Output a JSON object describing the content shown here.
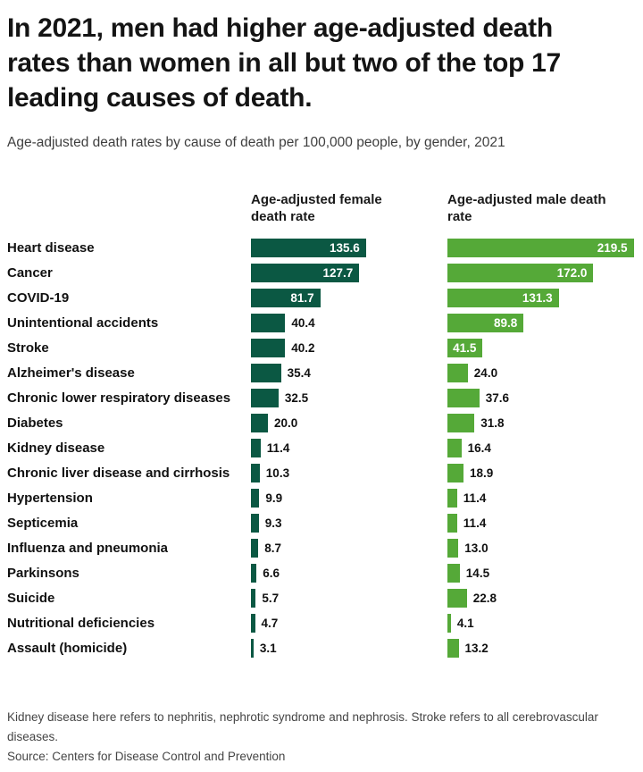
{
  "header": {
    "title": "In 2021, men had higher age-adjusted death rates than women in all but two of the top 17 leading causes of death.",
    "subtitle": "Age-adjusted death rates by cause of death per 100,000 people, by gender, 2021"
  },
  "chart_data": {
    "type": "bar",
    "orientation": "horizontal",
    "title": "Age-adjusted death rates by cause of death per 100,000 people, by gender, 2021",
    "xlim": [
      0,
      230
    ],
    "grid": false,
    "legend_position": "column-headers-above-bars",
    "categories": [
      "Heart disease",
      "Cancer",
      "COVID-19",
      "Unintentional accidents",
      "Stroke",
      "Alzheimer's disease",
      "Chronic lower respiratory diseases",
      "Diabetes",
      "Kidney disease",
      "Chronic liver disease and cirrhosis",
      "Hypertension",
      "Septicemia",
      "Influenza and pneumonia",
      "Parkinsons",
      "Suicide",
      "Nutritional deficiencies",
      "Assault (homicide)"
    ],
    "series": [
      {
        "name": "Age-adjusted female death rate",
        "color": "#0b5843",
        "values": [
          135.6,
          127.7,
          81.7,
          40.4,
          40.2,
          35.4,
          32.5,
          20.0,
          11.4,
          10.3,
          9.9,
          9.3,
          8.7,
          6.6,
          5.7,
          4.7,
          3.1
        ],
        "labels": [
          "135.6",
          "127.7",
          "81.7",
          "40.4",
          "40.2",
          "35.4",
          "32.5",
          "20.0",
          "11.4",
          "10.3",
          "9.9",
          "9.3",
          "8.7",
          "6.6",
          "5.7",
          "4.7",
          "3.1"
        ]
      },
      {
        "name": "Age-adjusted male death rate",
        "color": "#55a938",
        "values": [
          219.5,
          172.0,
          131.3,
          89.8,
          41.5,
          24.0,
          37.6,
          31.8,
          16.4,
          18.9,
          11.4,
          11.4,
          13.0,
          14.5,
          22.8,
          4.1,
          13.2
        ],
        "labels": [
          "219.5",
          "172.0",
          "131.3",
          "89.8",
          "41.5",
          "24.0",
          "37.6",
          "31.8",
          "16.4",
          "18.9",
          "11.4",
          "11.4",
          "13.0",
          "14.5",
          "22.8",
          "4.1",
          "13.2"
        ]
      }
    ],
    "value_label_color_inside": "#ffffff",
    "value_label_color_outside": "#111111"
  },
  "footer": {
    "note": "Kidney disease here refers to nephritis, nephrotic syndrome and nephrosis. Stroke refers to all cerebrovascular diseases.",
    "source": "Source: Centers for Disease Control and Prevention"
  }
}
